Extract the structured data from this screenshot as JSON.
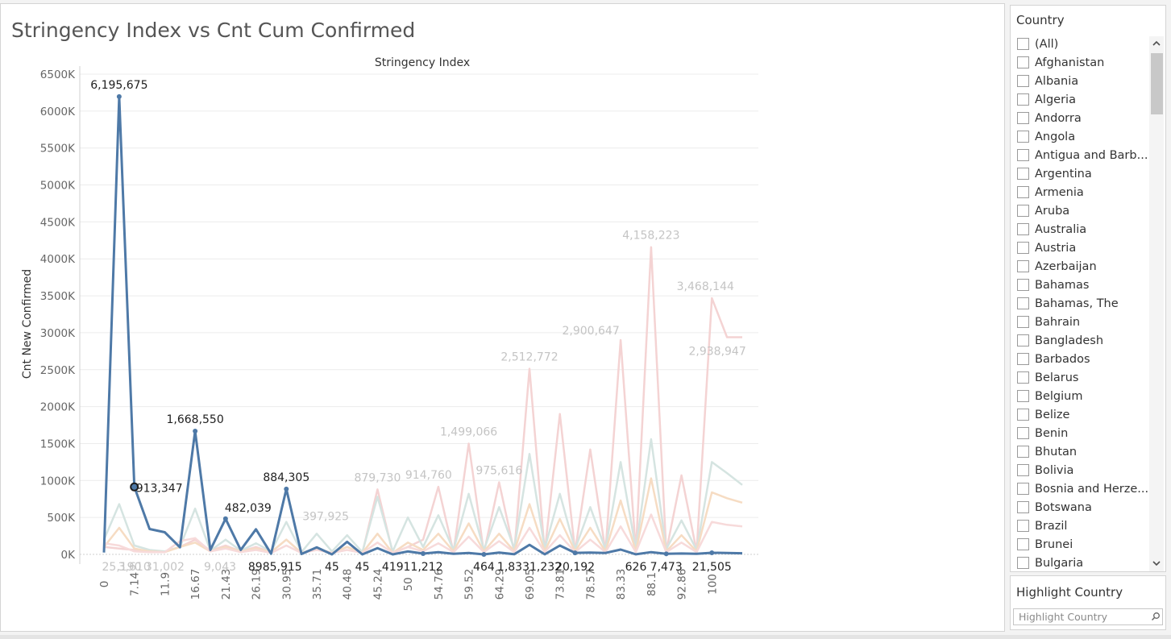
{
  "title": "Stringency Index vs Cnt Cum Confirmed",
  "country_filter": {
    "title": "Country",
    "items": [
      "(All)",
      "Afghanistan",
      "Albania",
      "Algeria",
      "Andorra",
      "Angola",
      "Antigua and Barb...",
      "Argentina",
      "Armenia",
      "Aruba",
      "Australia",
      "Austria",
      "Azerbaijan",
      "Bahamas",
      "Bahamas, The",
      "Bahrain",
      "Bangladesh",
      "Barbados",
      "Belarus",
      "Belgium",
      "Belize",
      "Benin",
      "Bhutan",
      "Bolivia",
      "Bosnia and Herze...",
      "Botswana",
      "Brazil",
      "Brunei",
      "Bulgaria"
    ]
  },
  "highlight": {
    "title": "Highlight Country",
    "placeholder": "Highlight Country"
  },
  "colors": {
    "main": "#4e79a7",
    "faded_red": "#f4d3d3",
    "faded_teal": "#d5e4e1",
    "faded_orange": "#f6dcc3",
    "faded_pink": "#f7dada",
    "dim_label": "#c4c4c4"
  },
  "chart_data": {
    "type": "line",
    "title": "Stringency Index",
    "xlabel": "",
    "ylabel": "Cnt New Confirmed",
    "ylim": [
      0,
      6500000
    ],
    "y_ticks": [
      "0K",
      "500K",
      "1000K",
      "1500K",
      "2000K",
      "2500K",
      "3000K",
      "3500K",
      "4000K",
      "4500K",
      "5000K",
      "5500K",
      "6000K",
      "6500K"
    ],
    "x_ticks": [
      "0",
      "7.14",
      "11.9",
      "16.67",
      "21.43",
      "26.19",
      "30.95",
      "35.71",
      "40.48",
      "45.24",
      "50",
      "54.76",
      "59.52",
      "64.29",
      "69.05",
      "73.81",
      "78.57",
      "83.33",
      "88.1",
      "92.86",
      "100"
    ],
    "series": [
      {
        "color": "main",
        "values": [
          25190,
          6195675,
          913347,
          343000,
          300000,
          96000,
          1668550,
          60000,
          482039,
          60000,
          340000,
          8985,
          884305,
          5915,
          95000,
          45,
          170000,
          45,
          85000,
          419,
          40000,
          11212,
          30000,
          8000,
          20000,
          464,
          25000,
          1833,
          130000,
          1232,
          120000,
          20192,
          25000,
          20000,
          65000,
          626,
          30000,
          7473,
          12000,
          8000,
          21505,
          20000,
          15000
        ]
      },
      {
        "color": "faded_red",
        "values": [
          100000,
          80000,
          60000,
          40000,
          40000,
          100000,
          200000,
          50000,
          120000,
          40000,
          100000,
          30000,
          200000,
          20000,
          80000,
          20000,
          100000,
          20000,
          879730,
          20000,
          100000,
          200000,
          914760,
          30000,
          1499066,
          20000,
          975616,
          30000,
          2512772,
          30000,
          1900000,
          40000,
          1420000,
          40000,
          2900647,
          40000,
          4158223,
          40000,
          1070000,
          40000,
          3468144,
          2938947,
          2938947
        ]
      },
      {
        "color": "faded_teal",
        "values": [
          200000,
          680000,
          120000,
          60000,
          40000,
          100000,
          620000,
          50000,
          200000,
          50000,
          150000,
          40000,
          440000,
          30000,
          280000,
          40000,
          260000,
          30000,
          780000,
          40000,
          500000,
          100000,
          530000,
          60000,
          820000,
          60000,
          640000,
          80000,
          1360000,
          80000,
          820000,
          70000,
          640000,
          70000,
          1250000,
          70000,
          1560000,
          70000,
          460000,
          60000,
          1250000,
          1100000,
          940000
        ]
      },
      {
        "color": "faded_orange",
        "values": [
          100000,
          360000,
          80000,
          40000,
          30000,
          100000,
          160000,
          40000,
          100000,
          40000,
          80000,
          30000,
          200000,
          20000,
          80000,
          20000,
          100000,
          20000,
          280000,
          20000,
          160000,
          60000,
          280000,
          40000,
          420000,
          40000,
          280000,
          40000,
          680000,
          40000,
          480000,
          40000,
          360000,
          40000,
          730000,
          40000,
          1030000,
          40000,
          260000,
          40000,
          840000,
          760000,
          700000
        ]
      },
      {
        "color": "faded_pink",
        "values": [
          150000,
          120000,
          40000,
          30000,
          30000,
          180000,
          220000,
          40000,
          80000,
          30000,
          60000,
          20000,
          120000,
          20000,
          60000,
          20000,
          60000,
          20000,
          160000,
          20000,
          100000,
          40000,
          150000,
          30000,
          240000,
          30000,
          180000,
          30000,
          360000,
          30000,
          260000,
          30000,
          200000,
          30000,
          380000,
          30000,
          540000,
          30000,
          160000,
          30000,
          440000,
          400000,
          380000
        ]
      }
    ],
    "data_labels": [
      {
        "text": "6,195,675",
        "x": 1,
        "y": 6195675,
        "style": "dark",
        "dx": 0,
        "dy": -10,
        "anchor": "middle"
      },
      {
        "text": "913,347",
        "x": 2,
        "y": 913347,
        "style": "dark",
        "dx": 2,
        "dy": 6,
        "anchor": "start"
      },
      {
        "text": "1,668,550",
        "x": 6,
        "y": 1668550,
        "style": "dark",
        "dx": 0,
        "dy": -10,
        "anchor": "middle"
      },
      {
        "text": "482,039",
        "x": 8,
        "y": 482039,
        "style": "dark",
        "dx": 28,
        "dy": -9,
        "anchor": "middle"
      },
      {
        "text": "884,305",
        "x": 12,
        "y": 884305,
        "style": "dark",
        "dx": 0,
        "dy": -10,
        "anchor": "middle"
      },
      {
        "text": "8985,915",
        "x": 12,
        "y": 0,
        "style": "dark",
        "dx": -14,
        "dy": 20,
        "anchor": "middle"
      },
      {
        "text": "45",
        "x": 15,
        "y": 0,
        "style": "dark",
        "dx": 0,
        "dy": 20,
        "anchor": "middle"
      },
      {
        "text": "45",
        "x": 17,
        "y": 0,
        "style": "dark",
        "dx": 0,
        "dy": 20,
        "anchor": "middle"
      },
      {
        "text": "419",
        "x": 19,
        "y": 0,
        "style": "dark",
        "dx": 0,
        "dy": 20,
        "anchor": "middle"
      },
      {
        "text": "11,212",
        "x": 21,
        "y": 0,
        "style": "dark",
        "dx": 0,
        "dy": 20,
        "anchor": "middle"
      },
      {
        "text": "464",
        "x": 25,
        "y": 0,
        "style": "dark",
        "dx": 0,
        "dy": 20,
        "anchor": "middle"
      },
      {
        "text": "1,8331,232",
        "x": 28,
        "y": 0,
        "style": "dark",
        "dx": 0,
        "dy": 20,
        "anchor": "middle"
      },
      {
        "text": "20,192",
        "x": 31,
        "y": 0,
        "style": "dark",
        "dx": 0,
        "dy": 20,
        "anchor": "middle"
      },
      {
        "text": "626",
        "x": 35,
        "y": 0,
        "style": "dark",
        "dx": 0,
        "dy": 20,
        "anchor": "middle"
      },
      {
        "text": "7,473",
        "x": 37,
        "y": 0,
        "style": "dark",
        "dx": 0,
        "dy": 20,
        "anchor": "middle"
      },
      {
        "text": "21,505",
        "x": 40,
        "y": 0,
        "style": "dark",
        "dx": 0,
        "dy": 20,
        "anchor": "middle"
      },
      {
        "text": "25,190",
        "x": 0,
        "y": 0,
        "style": "dim",
        "dx": 22,
        "dy": 20,
        "anchor": "middle"
      },
      {
        "text": "3,610",
        "x": 2,
        "y": 0,
        "style": "dim",
        "dx": 0,
        "dy": 20,
        "anchor": "middle"
      },
      {
        "text": "31,002",
        "x": 4,
        "y": 0,
        "style": "dim",
        "dx": 0,
        "dy": 20,
        "anchor": "middle"
      },
      {
        "text": "9,043",
        "x": 7,
        "y": 0,
        "style": "dim",
        "dx": 12,
        "dy": 20,
        "anchor": "middle"
      },
      {
        "text": "397,925",
        "x": 13,
        "y": 397925,
        "style": "dim",
        "dx": 30,
        "dy": -6,
        "anchor": "middle"
      },
      {
        "text": "879,730",
        "x": 18,
        "y": 879730,
        "style": "dim",
        "dx": 0,
        "dy": -10,
        "anchor": "middle"
      },
      {
        "text": "914,760",
        "x": 22,
        "y": 914760,
        "style": "dim",
        "dx": -12,
        "dy": -10,
        "anchor": "middle"
      },
      {
        "text": "1,499,066",
        "x": 24,
        "y": 1499066,
        "style": "dim",
        "dx": 0,
        "dy": -10,
        "anchor": "middle"
      },
      {
        "text": "975,616",
        "x": 26,
        "y": 975616,
        "style": "dim",
        "dx": 0,
        "dy": -10,
        "anchor": "middle"
      },
      {
        "text": "2,512,772",
        "x": 28,
        "y": 2512772,
        "style": "dim",
        "dx": 0,
        "dy": -10,
        "anchor": "middle"
      },
      {
        "text": "2,900,647",
        "x": 34,
        "y": 2900647,
        "style": "dim",
        "dx": -37,
        "dy": -7,
        "anchor": "middle"
      },
      {
        "text": "4,158,223",
        "x": 36,
        "y": 4158223,
        "style": "dim",
        "dx": 0,
        "dy": -10,
        "anchor": "middle"
      },
      {
        "text": "3,468,144",
        "x": 40,
        "y": 3468144,
        "style": "dim",
        "dx": -8,
        "dy": -10,
        "anchor": "middle"
      },
      {
        "text": "2,938,947",
        "x": 41,
        "y": 2938947,
        "style": "dim",
        "dx": -12,
        "dy": 22,
        "anchor": "middle"
      }
    ],
    "markers": [
      1,
      6,
      8,
      12,
      21,
      25,
      31,
      37,
      40
    ],
    "selected_marker": 2,
    "grid": true
  }
}
